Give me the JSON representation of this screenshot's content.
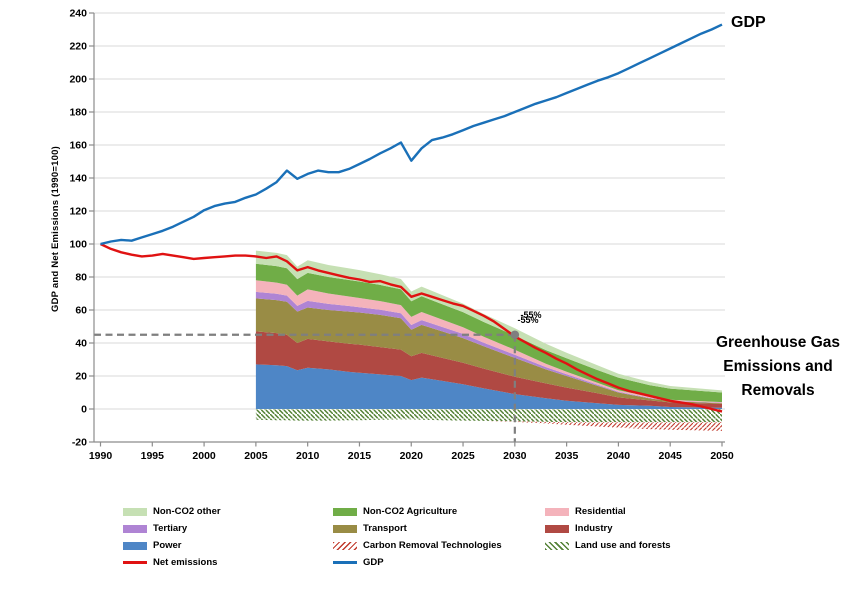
{
  "labels": {
    "y_axis_title": "GDP and Net Emissions (1990=100)",
    "gdp_label": "GDP",
    "ghg_lines": [
      "Greenhouse Gas",
      "Emissions and",
      "Removals"
    ]
  },
  "colors": {
    "grid": "#d9d9d9",
    "axis": "#8c8c8c",
    "tick_text": "#000000",
    "dashed": "#7f7f7f",
    "net_emissions": "#e01212",
    "gdp": "#1a70b8",
    "hatch_green": "#538135",
    "hatch_red": "#c0392b"
  },
  "chart_data": {
    "type": "area",
    "title": "",
    "ylabel": "GDP and Net Emissions (1990=100)",
    "xlabel": "",
    "x_range": [
      1990,
      2050
    ],
    "y_range": [
      -20,
      240
    ],
    "x_ticks": [
      1990,
      1995,
      2000,
      2005,
      2010,
      2015,
      2020,
      2025,
      2030,
      2035,
      2040,
      2045,
      2050
    ],
    "y_ticks": [
      -20,
      0,
      20,
      40,
      60,
      80,
      100,
      120,
      140,
      160,
      180,
      200,
      220,
      240
    ],
    "grid": true,
    "legend_position": "bottom",
    "target": {
      "x": 2030,
      "y": 45,
      "label": "-55%"
    },
    "lines": [
      {
        "name": "Net emissions",
        "color": "#e01212",
        "x_start": 1990,
        "step": 1,
        "values": [
          100,
          97,
          95,
          93.5,
          92.5,
          93,
          94,
          93,
          92,
          91,
          91.5,
          92,
          92.5,
          93,
          93,
          92.5,
          91.5,
          92.5,
          89.5,
          84,
          86,
          84,
          82.5,
          81,
          79.5,
          78.5,
          77,
          77.5,
          75.5,
          74,
          68,
          70,
          68,
          66,
          64,
          62.5,
          59.5,
          56.5,
          53,
          48.5,
          44,
          40.5,
          37,
          34,
          30.5,
          27.5,
          24,
          21,
          18,
          15.5,
          13,
          11,
          9.5,
          8,
          6.5,
          5,
          4,
          3,
          1.5,
          0,
          -1.5
        ]
      },
      {
        "name": "GDP",
        "color": "#1a70b8",
        "x_start": 1990,
        "step": 1,
        "values": [
          100,
          101.5,
          102.5,
          102,
          104,
          106,
          108,
          110.5,
          113.5,
          116.5,
          120.5,
          123,
          124.5,
          125.5,
          128,
          130,
          133.5,
          137.5,
          144.5,
          139.5,
          142.5,
          144.5,
          143.5,
          143.5,
          145.5,
          148.5,
          151.5,
          155,
          158,
          161.5,
          150.5,
          158,
          163,
          164.5,
          166.5,
          169,
          171.5,
          173.5,
          175.5,
          177.5,
          180,
          182.5,
          185,
          187,
          189,
          191.5,
          194,
          196.5,
          199,
          201,
          203.5,
          206.5,
          209.5,
          212.5,
          215.5,
          218.5,
          221.5,
          224.5,
          227.5,
          230,
          233
        ]
      }
    ],
    "stack_x": [
      2005,
      2007,
      2008,
      2009,
      2010,
      2012,
      2014,
      2015,
      2017,
      2019,
      2020,
      2021,
      2023,
      2025,
      2027,
      2030,
      2033,
      2035,
      2038,
      2040,
      2043,
      2045,
      2050
    ],
    "stacked_series": [
      {
        "name": "Power",
        "color": "#4e86c6",
        "fill": "solid",
        "values": [
          27,
          26.5,
          26,
          23.5,
          25,
          24,
          22.5,
          22,
          21,
          20,
          17.5,
          19,
          17,
          15,
          12.5,
          9,
          6.5,
          5,
          3.5,
          2.5,
          2,
          1.2,
          0.8
        ]
      },
      {
        "name": "Industry",
        "color": "#b04943",
        "fill": "solid",
        "values": [
          20,
          19.5,
          19,
          16.5,
          17.5,
          17,
          17,
          17,
          16.5,
          16,
          14.5,
          15,
          14,
          13,
          12,
          10.5,
          9,
          8,
          6,
          4.5,
          3.2,
          2.8,
          2.3
        ]
      },
      {
        "name": "Transport",
        "color": "#998c45",
        "fill": "solid",
        "values": [
          20,
          20,
          20,
          19,
          19,
          19,
          19.5,
          19.5,
          19.5,
          19,
          16,
          17,
          16,
          15,
          13.5,
          11.5,
          8.5,
          7,
          4.5,
          3,
          1.2,
          0.8,
          0.5
        ]
      },
      {
        "name": "Tertiary",
        "color": "#af84d4",
        "fill": "solid",
        "values": [
          4,
          3.8,
          3.7,
          3.5,
          4,
          3.7,
          3.4,
          3.2,
          3.1,
          3,
          2.9,
          2.9,
          2.7,
          2.5,
          2.2,
          1.9,
          1.4,
          1.1,
          0.7,
          0.5,
          0.35,
          0.25,
          0.2
        ]
      },
      {
        "name": "Residential",
        "color": "#f4b3bb",
        "fill": "solid",
        "values": [
          7,
          6.8,
          6.6,
          6.2,
          7,
          6.3,
          5.8,
          5.6,
          5.3,
          5,
          4.9,
          4.9,
          4.5,
          4.1,
          3.6,
          3,
          2,
          1.5,
          1.1,
          0.9,
          0.65,
          0.5,
          0.4
        ]
      },
      {
        "name": "Non-CO2 Agriculture",
        "color": "#70ad47",
        "fill": "solid",
        "values": [
          10,
          10,
          10,
          10,
          10,
          10,
          10,
          10,
          9.8,
          9.6,
          9.5,
          9.5,
          9.3,
          9.1,
          8.9,
          8.6,
          8.3,
          8.1,
          7.8,
          7.6,
          7.1,
          6.8,
          5.8
        ]
      },
      {
        "name": "Non-CO2 other",
        "color": "#c6e0b4",
        "fill": "solid",
        "values": [
          8,
          8,
          8,
          7.6,
          7.6,
          7.3,
          7,
          6.9,
          6.5,
          6.2,
          5.9,
          5.9,
          5.5,
          5.2,
          4.9,
          4.4,
          3.8,
          3.4,
          2.8,
          2.4,
          1.9,
          1.6,
          1.3
        ]
      }
    ],
    "negative_series": [
      {
        "name": "Land use and forests",
        "fill": "hatch-green",
        "values": [
          -6.5,
          -6.8,
          -6.8,
          -7,
          -7,
          -7,
          -6.8,
          -6.8,
          -6.5,
          -6.3,
          -6.3,
          -6.5,
          -6.8,
          -7,
          -7.2,
          -7.5,
          -7.8,
          -8,
          -8,
          -8,
          -8,
          -8,
          -8
        ]
      },
      {
        "name": "Carbon Removal Technologies",
        "fill": "hatch-red",
        "values": [
          0,
          0,
          0,
          0,
          0,
          0,
          0,
          0,
          0,
          0,
          0,
          0,
          0,
          0,
          0,
          -0.3,
          -1,
          -1.6,
          -2.6,
          -3.4,
          -4.2,
          -4.6,
          -5.3
        ]
      }
    ],
    "legend": {
      "columns": [
        [
          {
            "label": "Non-CO2 other",
            "swatch": "area",
            "color": "#c6e0b4"
          },
          {
            "label": "Tertiary",
            "swatch": "area",
            "color": "#af84d4"
          },
          {
            "label": "Power",
            "swatch": "area",
            "color": "#4e86c6"
          },
          {
            "label": "Net emissions",
            "swatch": "line",
            "color": "#e01212"
          }
        ],
        [
          {
            "label": "Non-CO2 Agriculture",
            "swatch": "area",
            "color": "#70ad47"
          },
          {
            "label": "Transport",
            "swatch": "area",
            "color": "#998c45"
          },
          {
            "label": "Carbon Removal Technologies",
            "swatch": "hatch-red",
            "color": "#c0392b"
          },
          {
            "label": "GDP",
            "swatch": "line",
            "color": "#1a70b8"
          }
        ],
        [
          {
            "label": "Residential",
            "swatch": "area",
            "color": "#f4b3bb"
          },
          {
            "label": "Industry",
            "swatch": "area",
            "color": "#b04943"
          },
          {
            "label": "Land use and forests",
            "swatch": "hatch-green",
            "color": "#538135"
          }
        ]
      ]
    }
  }
}
